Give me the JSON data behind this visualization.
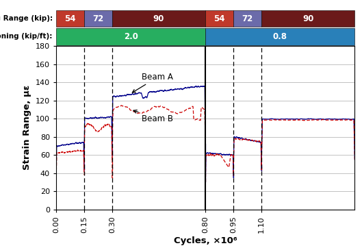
{
  "xlim": [
    0,
    1600000.0
  ],
  "ylim": [
    0,
    180
  ],
  "yticks": [
    0,
    20,
    40,
    60,
    80,
    100,
    120,
    140,
    160,
    180
  ],
  "xtick_positions": [
    0,
    150000,
    300000,
    800000,
    950000,
    1100000
  ],
  "xtick_labels": [
    "0.00",
    "0.15",
    "0.30",
    "0.80",
    "0.95",
    "1.10"
  ],
  "xlabel": "Cycles, ×10⁶",
  "ylabel": "Strain Range, με",
  "solid_vline": 800000,
  "dashed_vlines": [
    150000,
    300000,
    950000,
    1100000
  ],
  "beam_A_color": "#00008B",
  "beam_B_color": "#CC0000",
  "header_row1_labels": [
    "54",
    "72",
    "90",
    "54",
    "72",
    "90"
  ],
  "header_row1_colors": [
    "#C0392B",
    "#6B6BAA",
    "#6B1A1A",
    "#C0392B",
    "#6B6BAA",
    "#6B1A1A"
  ],
  "header_row1_xranges": [
    [
      0,
      150000
    ],
    [
      150000,
      300000
    ],
    [
      300000,
      800000
    ],
    [
      800000,
      950000
    ],
    [
      950000,
      1100000
    ],
    [
      1100000,
      1600000
    ]
  ],
  "header_row2_labels": [
    "2.0",
    "0.8"
  ],
  "header_row2_colors": [
    "#27AE60",
    "#2980B9"
  ],
  "header_row2_xranges": [
    [
      0,
      800000
    ],
    [
      800000,
      1600000
    ]
  ],
  "header_row1_label": "Loading Range (kip):",
  "header_row2_label": "Post-tensioning (kip/ft):",
  "figsize": [
    5.29,
    3.62
  ],
  "dpi": 100
}
